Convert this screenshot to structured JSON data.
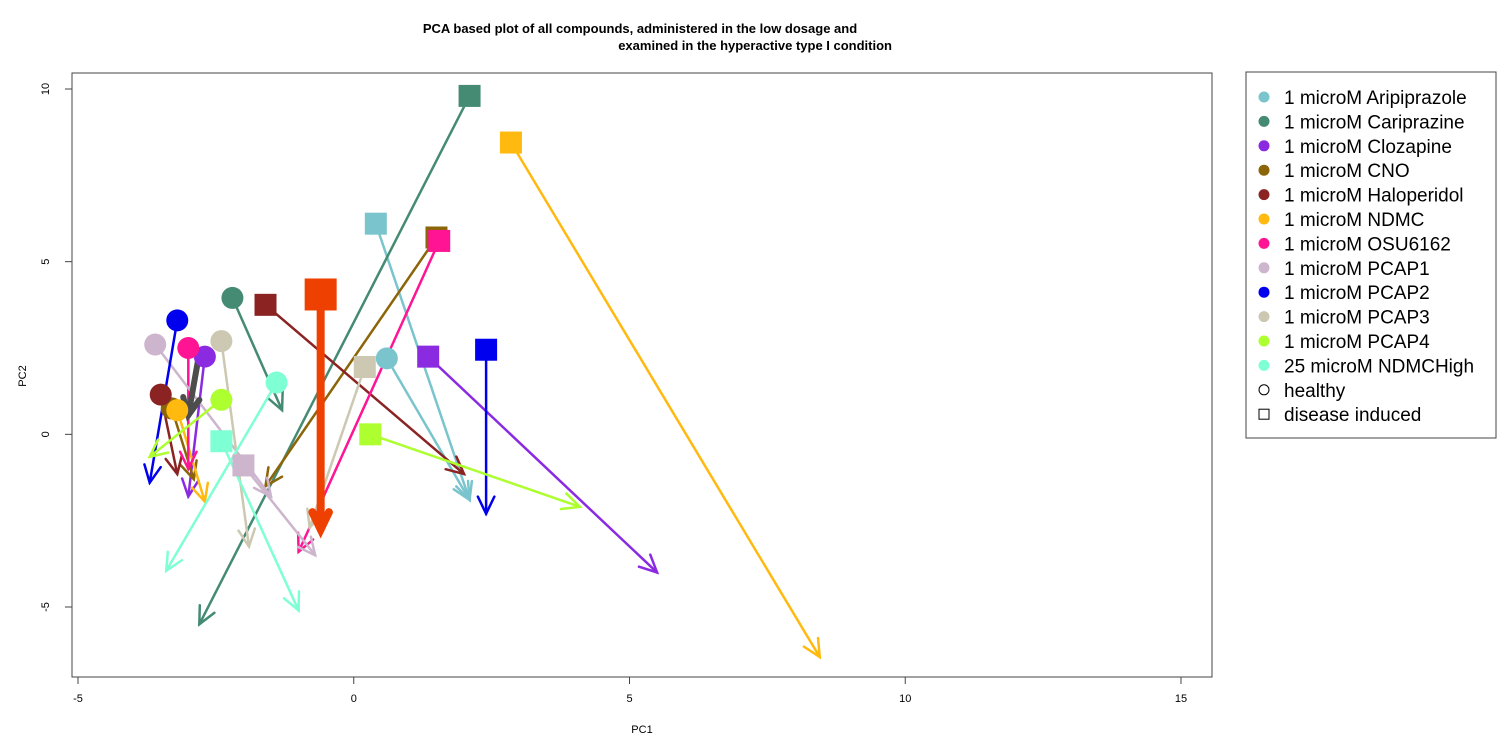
{
  "chart_data": {
    "type": "scatter",
    "title_line1": "PCA based plot of all compounds, administered in the low dosage and",
    "title_line2": "examined in the hyperactive type I condition",
    "xlabel": "PC1",
    "ylabel": "PC2",
    "xlim": [
      -5,
      15.7
    ],
    "ylim": [
      -7,
      10.5
    ],
    "xticks": [
      -5,
      0,
      5,
      10,
      15
    ],
    "yticks": [
      -5,
      0,
      5,
      10
    ],
    "grid": false,
    "legend_position": "right",
    "series": [
      {
        "name": "1 microM Aripiprazole",
        "color": "#7AC5CD",
        "healthy": {
          "x": 0.6,
          "y": 2.2,
          "dx": 2.1,
          "dy": -1.9
        },
        "disease": {
          "x": 0.4,
          "y": 6.1,
          "dx": 2.1,
          "dy": -1.9
        }
      },
      {
        "name": "1 microM Cariprazine",
        "color": "#458B74",
        "healthy": {
          "x": -2.2,
          "y": 3.95,
          "dx": -1.3,
          "dy": 0.7
        },
        "disease": {
          "x": 2.1,
          "y": 9.8,
          "dx": -2.8,
          "dy": -5.5
        }
      },
      {
        "name": "1 microM Clozapine",
        "color": "#8A2BE2",
        "healthy": {
          "x": -2.7,
          "y": 2.25,
          "dx": -3.0,
          "dy": -1.8
        },
        "disease": {
          "x": 1.35,
          "y": 2.25,
          "dx": 5.5,
          "dy": -4.0
        }
      },
      {
        "name": "1 microM CNO",
        "color": "#8B6508",
        "healthy": {
          "x": -3.3,
          "y": 0.75,
          "dx": -2.9,
          "dy": -1.3
        },
        "disease": {
          "x": 1.5,
          "y": 5.7,
          "dx": -1.6,
          "dy": -1.5
        }
      },
      {
        "name": "1 microM Haloperidol",
        "color": "#8B2323",
        "healthy": {
          "x": -3.5,
          "y": 1.15,
          "dx": -3.2,
          "dy": -1.15
        },
        "disease": {
          "x": -1.6,
          "y": 3.75,
          "dx": 2.0,
          "dy": -1.15
        }
      },
      {
        "name": "1 microM NDMC",
        "color": "#FFB90F",
        "healthy": {
          "x": -3.2,
          "y": 0.7,
          "dx": -2.7,
          "dy": -1.95
        },
        "disease": {
          "x": 2.85,
          "y": 8.45,
          "dx": 8.45,
          "dy": -6.45
        }
      },
      {
        "name": "1 microM OSU6162",
        "color": "#FF1493",
        "healthy": {
          "x": -3.0,
          "y": 2.5,
          "dx": -3.0,
          "dy": -1.0
        },
        "disease": {
          "x": 1.55,
          "y": 5.6,
          "dx": -1.0,
          "dy": -3.4
        }
      },
      {
        "name": "1 microM PCAP1",
        "color": "#CDB5CD",
        "healthy": {
          "x": -3.6,
          "y": 2.6,
          "dx": -1.5,
          "dy": -1.8
        },
        "disease": {
          "x": -2.0,
          "y": -0.9,
          "dx": -0.7,
          "dy": -3.5
        }
      },
      {
        "name": "1 microM PCAP2",
        "color": "#0000EE",
        "healthy": {
          "x": -3.2,
          "y": 3.3,
          "dx": -3.7,
          "dy": -1.4
        },
        "disease": {
          "x": 2.4,
          "y": 2.45,
          "dx": 2.4,
          "dy": -2.3
        }
      },
      {
        "name": "1 microM PCAP3",
        "color": "#CDC8B1",
        "healthy": {
          "x": -2.4,
          "y": 2.7,
          "dx": -1.9,
          "dy": -3.25
        },
        "disease": {
          "x": 0.2,
          "y": 1.95,
          "dx": -0.8,
          "dy": -2.7
        }
      },
      {
        "name": "1 microM PCAP4",
        "color": "#ADFF2F",
        "healthy": {
          "x": -2.4,
          "y": 1.0,
          "dx": -3.7,
          "dy": -0.65
        },
        "disease": {
          "x": 0.3,
          "y": 0.0,
          "dx": 4.1,
          "dy": -2.1
        }
      },
      {
        "name": "25 microM NDMCHigh",
        "color": "#7FFFD4",
        "healthy": {
          "x": -1.4,
          "y": 1.5,
          "dx": -3.4,
          "dy": -3.95
        },
        "disease": {
          "x": -2.4,
          "y": -0.2,
          "dx": -1.0,
          "dy": -5.1
        }
      }
    ],
    "extra_arrows": [
      {
        "color": "#4D4D4D",
        "x": -2.8,
        "y": 2.35,
        "dx": -3.0,
        "dy": 0.55,
        "width": 6
      },
      {
        "color": "#EE4000",
        "x": -0.6,
        "y": 4.05,
        "dx": -0.6,
        "dy": -2.75,
        "width": 8
      }
    ],
    "extra_markers": [
      {
        "color": "#EE4000",
        "shape": "square",
        "x": -0.6,
        "y": 4.05,
        "size": 32
      }
    ],
    "legend": {
      "shape_entries": [
        {
          "label": "healthy",
          "shape": "circle"
        },
        {
          "label": "disease induced",
          "shape": "square"
        }
      ]
    }
  }
}
